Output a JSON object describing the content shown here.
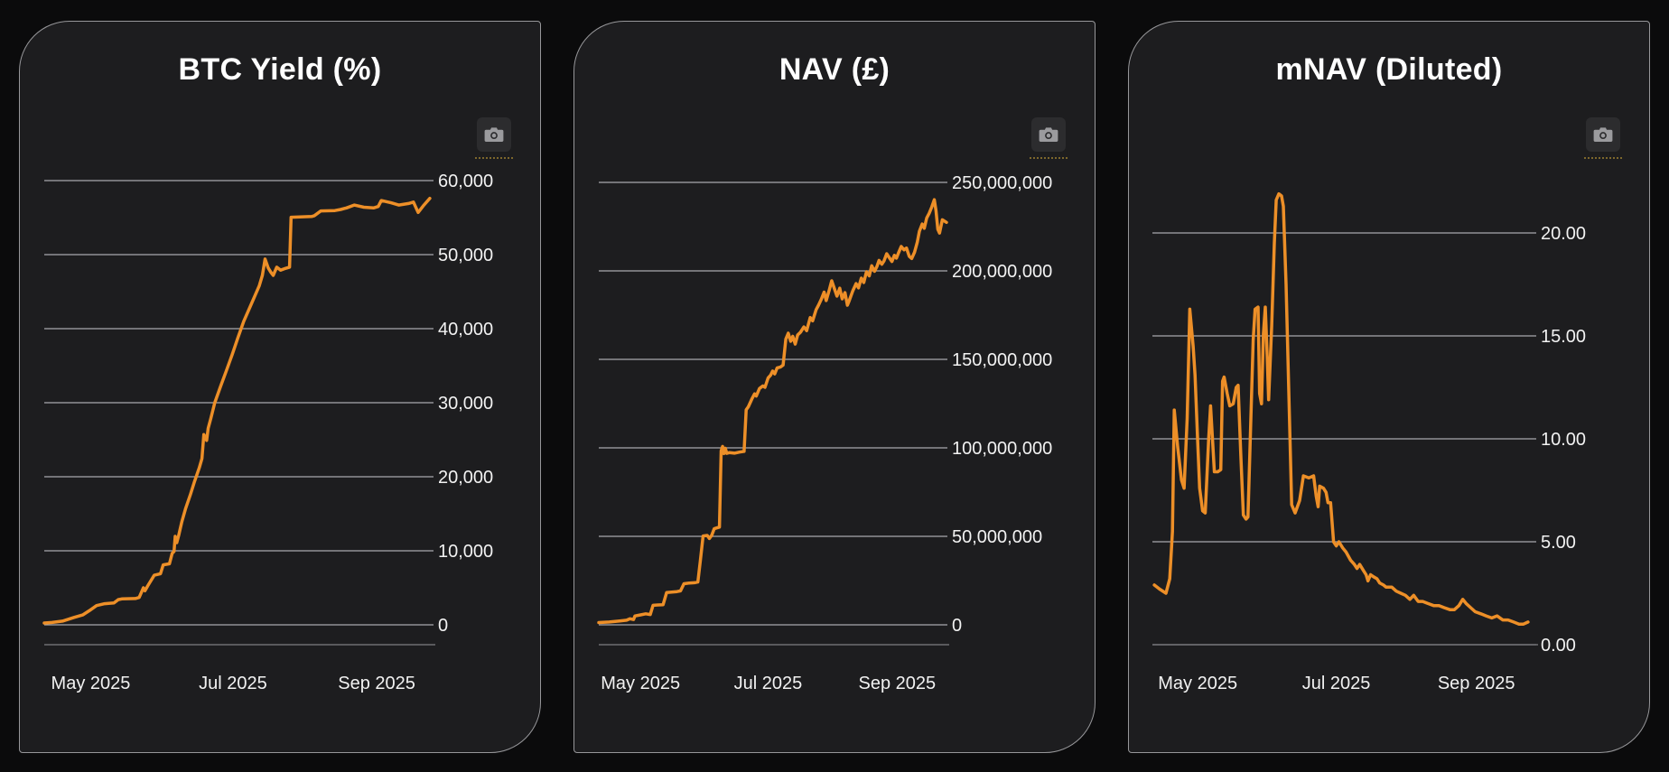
{
  "colors": {
    "page_bg": "#0b0b0c",
    "panel_bg": "#1d1d1f",
    "panel_border": "#97979a",
    "gridline": "#a9a9ad",
    "axis_line": "#6f6f72",
    "title_text": "#ffffff",
    "tick_text": "#f2f2f2",
    "series_line": "#ed8f28",
    "camera_box": "#2c2c2e",
    "camera_glyph": "#9b9b9e",
    "camera_underline": "#7d672c"
  },
  "icons": {
    "camera-icon": "camera glyph (rounded body with lens)"
  },
  "panels": [
    {
      "name": "btc-yield",
      "camera_button": {
        "icon": "camera-icon"
      }
    },
    {
      "name": "nav-gbp",
      "camera_button": {
        "icon": "camera-icon"
      }
    },
    {
      "name": "mnav-diluted",
      "camera_button": {
        "icon": "camera-icon"
      }
    }
  ],
  "chart_data": [
    {
      "type": "line",
      "title": "BTC Yield (%)",
      "xlabel": "",
      "ylabel": "",
      "grid": true,
      "legend_position": "none",
      "line_color": "#ed8f28",
      "x_tick_labels": [
        "May 2025",
        "Jul 2025",
        "Sep 2025"
      ],
      "y_tick_labels": [
        "0",
        "10,000",
        "20,000",
        "30,000",
        "40,000",
        "50,000",
        "60,000"
      ],
      "y_tick_values": [
        0,
        10000,
        20000,
        30000,
        40000,
        50000,
        60000
      ],
      "ylim": [
        0,
        63000
      ],
      "x_range": "mid-April 2025 to early October 2025 (x stored as 0-1 fraction)",
      "points": [
        [
          0,
          250
        ],
        [
          0.02,
          320
        ],
        [
          0.047,
          500
        ],
        [
          0.077,
          1000
        ],
        [
          0.1,
          1350
        ],
        [
          0.116,
          1900
        ],
        [
          0.135,
          2600
        ],
        [
          0.156,
          2850
        ],
        [
          0.18,
          2950
        ],
        [
          0.191,
          3400
        ],
        [
          0.2,
          3500
        ],
        [
          0.235,
          3550
        ],
        [
          0.245,
          3700
        ],
        [
          0.256,
          5000
        ],
        [
          0.26,
          4600
        ],
        [
          0.267,
          5250
        ],
        [
          0.284,
          6700
        ],
        [
          0.3,
          6900
        ],
        [
          0.307,
          8100
        ],
        [
          0.323,
          8250
        ],
        [
          0.33,
          9650
        ],
        [
          0.335,
          9900
        ],
        [
          0.338,
          11950
        ],
        [
          0.342,
          11100
        ],
        [
          0.347,
          12100
        ],
        [
          0.355,
          13900
        ],
        [
          0.365,
          15750
        ],
        [
          0.377,
          17550
        ],
        [
          0.388,
          19400
        ],
        [
          0.4,
          21200
        ],
        [
          0.407,
          22450
        ],
        [
          0.412,
          25700
        ],
        [
          0.419,
          24900
        ],
        [
          0.423,
          26550
        ],
        [
          0.43,
          27900
        ],
        [
          0.44,
          30000
        ],
        [
          0.455,
          32200
        ],
        [
          0.47,
          34300
        ],
        [
          0.485,
          36500
        ],
        [
          0.5,
          38800
        ],
        [
          0.515,
          41000
        ],
        [
          0.53,
          42800
        ],
        [
          0.545,
          44600
        ],
        [
          0.555,
          45800
        ],
        [
          0.563,
          47200
        ],
        [
          0.57,
          49400
        ],
        [
          0.578,
          48200
        ],
        [
          0.585,
          47600
        ],
        [
          0.591,
          47200
        ],
        [
          0.6,
          48300
        ],
        [
          0.61,
          47900
        ],
        [
          0.62,
          48100
        ],
        [
          0.633,
          48300
        ],
        [
          0.637,
          55050
        ],
        [
          0.66,
          55100
        ],
        [
          0.69,
          55150
        ],
        [
          0.697,
          55250
        ],
        [
          0.714,
          55900
        ],
        [
          0.75,
          55950
        ],
        [
          0.765,
          56100
        ],
        [
          0.78,
          56300
        ],
        [
          0.8,
          56700
        ],
        [
          0.825,
          56400
        ],
        [
          0.85,
          56300
        ],
        [
          0.862,
          56500
        ],
        [
          0.87,
          57300
        ],
        [
          0.895,
          57000
        ],
        [
          0.915,
          56700
        ],
        [
          0.94,
          56900
        ],
        [
          0.953,
          57100
        ],
        [
          0.958,
          56500
        ],
        [
          0.965,
          55700
        ],
        [
          0.98,
          56700
        ],
        [
          0.995,
          57600
        ]
      ]
    },
    {
      "type": "line",
      "title": "NAV (£)",
      "xlabel": "",
      "ylabel": "",
      "grid": true,
      "legend_position": "none",
      "line_color": "#ed8f28",
      "value_unit": "millions of GBP",
      "x_tick_labels": [
        "May 2025",
        "Jul 2025",
        "Sep 2025"
      ],
      "y_tick_labels": [
        "0",
        "50,000,000",
        "100,000,000",
        "150,000,000",
        "200,000,000",
        "250,000,000"
      ],
      "y_tick_values": [
        0,
        50,
        100,
        150,
        200,
        250
      ],
      "ylim": [
        0,
        255
      ],
      "x_range": "mid-April 2025 to early October 2025 (x stored as 0-1 fraction)",
      "points": [
        [
          0,
          1.3
        ],
        [
          0.03,
          1.6
        ],
        [
          0.06,
          2.2
        ],
        [
          0.08,
          2.6
        ],
        [
          0.09,
          3.4
        ],
        [
          0.1,
          3.0
        ],
        [
          0.104,
          5.0
        ],
        [
          0.12,
          5.6
        ],
        [
          0.135,
          6.2
        ],
        [
          0.148,
          5.8
        ],
        [
          0.156,
          11.0
        ],
        [
          0.17,
          11.2
        ],
        [
          0.185,
          11.4
        ],
        [
          0.195,
          18.2
        ],
        [
          0.21,
          18.5
        ],
        [
          0.225,
          18.8
        ],
        [
          0.235,
          19.2
        ],
        [
          0.245,
          23.2
        ],
        [
          0.26,
          23.6
        ],
        [
          0.275,
          23.8
        ],
        [
          0.285,
          24.2
        ],
        [
          0.292,
          36.0
        ],
        [
          0.3,
          50.2
        ],
        [
          0.312,
          50.5
        ],
        [
          0.318,
          48.8
        ],
        [
          0.325,
          50.6
        ],
        [
          0.332,
          54.3
        ],
        [
          0.34,
          54.8
        ],
        [
          0.347,
          55.2
        ],
        [
          0.352,
          98.3
        ],
        [
          0.356,
          100.8
        ],
        [
          0.36,
          96.8
        ],
        [
          0.364,
          99.8
        ],
        [
          0.368,
          96.9
        ],
        [
          0.375,
          97.3
        ],
        [
          0.39,
          97.0
        ],
        [
          0.405,
          97.6
        ],
        [
          0.418,
          98.0
        ],
        [
          0.424,
          121.5
        ],
        [
          0.43,
          123.2
        ],
        [
          0.44,
          127.5
        ],
        [
          0.448,
          130.5
        ],
        [
          0.453,
          129.3
        ],
        [
          0.462,
          133.5
        ],
        [
          0.472,
          135.0
        ],
        [
          0.478,
          134.2
        ],
        [
          0.487,
          139.5
        ],
        [
          0.494,
          141.0
        ],
        [
          0.5,
          143.4
        ],
        [
          0.506,
          141.8
        ],
        [
          0.513,
          145.2
        ],
        [
          0.522,
          145.6
        ],
        [
          0.53,
          146.8
        ],
        [
          0.538,
          161.5
        ],
        [
          0.545,
          164.8
        ],
        [
          0.552,
          160.2
        ],
        [
          0.558,
          163.0
        ],
        [
          0.565,
          158.6
        ],
        [
          0.572,
          163.8
        ],
        [
          0.58,
          165.3
        ],
        [
          0.59,
          168.3
        ],
        [
          0.598,
          166.2
        ],
        [
          0.608,
          173.6
        ],
        [
          0.615,
          171.8
        ],
        [
          0.625,
          178.0
        ],
        [
          0.632,
          180.6
        ],
        [
          0.64,
          184.0
        ],
        [
          0.648,
          188.0
        ],
        [
          0.654,
          183.2
        ],
        [
          0.662,
          188.6
        ],
        [
          0.67,
          194.4
        ],
        [
          0.678,
          189.8
        ],
        [
          0.685,
          185.7
        ],
        [
          0.693,
          190.2
        ],
        [
          0.7,
          184.2
        ],
        [
          0.708,
          187.7
        ],
        [
          0.715,
          180.6
        ],
        [
          0.72,
          183.0
        ],
        [
          0.73,
          188.5
        ],
        [
          0.74,
          192.8
        ],
        [
          0.747,
          190.4
        ],
        [
          0.755,
          195.9
        ],
        [
          0.762,
          193.4
        ],
        [
          0.77,
          199.5
        ],
        [
          0.778,
          197.2
        ],
        [
          0.785,
          202.9
        ],
        [
          0.793,
          199.8
        ],
        [
          0.8,
          202.5
        ],
        [
          0.806,
          205.9
        ],
        [
          0.814,
          203.8
        ],
        [
          0.82,
          205.5
        ],
        [
          0.828,
          209.7
        ],
        [
          0.835,
          207.6
        ],
        [
          0.843,
          205.3
        ],
        [
          0.85,
          208.8
        ],
        [
          0.856,
          207.2
        ],
        [
          0.862,
          210.2
        ],
        [
          0.87,
          213.8
        ],
        [
          0.878,
          211.9
        ],
        [
          0.885,
          212.9
        ],
        [
          0.893,
          208.2
        ],
        [
          0.9,
          207.0
        ],
        [
          0.908,
          210.5
        ],
        [
          0.916,
          216.3
        ],
        [
          0.922,
          222.4
        ],
        [
          0.93,
          226.5
        ],
        [
          0.936,
          224.1
        ],
        [
          0.943,
          229.9
        ],
        [
          0.95,
          232.5
        ],
        [
          0.958,
          236.2
        ],
        [
          0.965,
          240.2
        ],
        [
          0.97,
          234.0
        ],
        [
          0.975,
          223.5
        ],
        [
          0.98,
          221.4
        ],
        [
          0.988,
          228.9
        ],
        [
          1.0,
          227.4
        ]
      ]
    },
    {
      "type": "line",
      "title": "mNAV (Diluted)",
      "xlabel": "",
      "ylabel": "",
      "grid": true,
      "legend_position": "none",
      "line_color": "#ed8f28",
      "x_tick_labels": [
        "May 2025",
        "Jul 2025",
        "Sep 2025"
      ],
      "y_tick_labels": [
        "0.00",
        "5.00",
        "10.00",
        "15.00",
        "20.00"
      ],
      "y_tick_values": [
        0,
        5,
        10,
        15,
        20
      ],
      "ylim": [
        0,
        22.5
      ],
      "x_range": "mid-April 2025 to early October 2025 (x stored as 0-1 fraction)",
      "points": [
        [
          0.005,
          2.9
        ],
        [
          0.019,
          2.7
        ],
        [
          0.036,
          2.5
        ],
        [
          0.046,
          3.2
        ],
        [
          0.053,
          5.5
        ],
        [
          0.058,
          11.4
        ],
        [
          0.067,
          9.6
        ],
        [
          0.077,
          8.0
        ],
        [
          0.084,
          7.6
        ],
        [
          0.092,
          11.0
        ],
        [
          0.099,
          16.3
        ],
        [
          0.108,
          14.5
        ],
        [
          0.113,
          13.1
        ],
        [
          0.12,
          9.8
        ],
        [
          0.125,
          7.6
        ],
        [
          0.133,
          6.5
        ],
        [
          0.14,
          6.4
        ],
        [
          0.149,
          10.0
        ],
        [
          0.154,
          11.6
        ],
        [
          0.164,
          8.4
        ],
        [
          0.173,
          8.4
        ],
        [
          0.181,
          8.5
        ],
        [
          0.186,
          12.8
        ],
        [
          0.19,
          13.0
        ],
        [
          0.198,
          12.2
        ],
        [
          0.205,
          11.6
        ],
        [
          0.214,
          11.7
        ],
        [
          0.222,
          12.5
        ],
        [
          0.227,
          12.6
        ],
        [
          0.234,
          9.3
        ],
        [
          0.241,
          6.3
        ],
        [
          0.248,
          6.1
        ],
        [
          0.253,
          6.2
        ],
        [
          0.26,
          10.5
        ],
        [
          0.267,
          14.8
        ],
        [
          0.272,
          16.3
        ],
        [
          0.28,
          16.4
        ],
        [
          0.284,
          12.2
        ],
        [
          0.289,
          11.7
        ],
        [
          0.294,
          15.1
        ],
        [
          0.299,
          16.4
        ],
        [
          0.304,
          14.0
        ],
        [
          0.308,
          11.9
        ],
        [
          0.316,
          15.5
        ],
        [
          0.323,
          19.5
        ],
        [
          0.328,
          21.6
        ],
        [
          0.335,
          21.9
        ],
        [
          0.342,
          21.8
        ],
        [
          0.347,
          21.3
        ],
        [
          0.354,
          17.5
        ],
        [
          0.361,
          12.5
        ],
        [
          0.369,
          6.8
        ],
        [
          0.378,
          6.4
        ],
        [
          0.39,
          7.0
        ],
        [
          0.4,
          8.2
        ],
        [
          0.414,
          8.1
        ],
        [
          0.427,
          8.2
        ],
        [
          0.434,
          7.2
        ],
        [
          0.439,
          6.7
        ],
        [
          0.443,
          7.7
        ],
        [
          0.453,
          7.6
        ],
        [
          0.46,
          7.4
        ],
        [
          0.465,
          6.9
        ],
        [
          0.472,
          6.9
        ],
        [
          0.48,
          5.0
        ],
        [
          0.487,
          4.8
        ],
        [
          0.494,
          5.0
        ],
        [
          0.504,
          4.7
        ],
        [
          0.513,
          4.5
        ],
        [
          0.525,
          4.1
        ],
        [
          0.535,
          3.9
        ],
        [
          0.542,
          3.7
        ],
        [
          0.549,
          3.9
        ],
        [
          0.559,
          3.6
        ],
        [
          0.566,
          3.4
        ],
        [
          0.571,
          3.1
        ],
        [
          0.578,
          3.4
        ],
        [
          0.586,
          3.3
        ],
        [
          0.595,
          3.2
        ],
        [
          0.602,
          3.0
        ],
        [
          0.612,
          2.9
        ],
        [
          0.619,
          2.8
        ],
        [
          0.634,
          2.8
        ],
        [
          0.646,
          2.6
        ],
        [
          0.658,
          2.5
        ],
        [
          0.67,
          2.4
        ],
        [
          0.682,
          2.2
        ],
        [
          0.692,
          2.4
        ],
        [
          0.704,
          2.1
        ],
        [
          0.716,
          2.1
        ],
        [
          0.73,
          2.0
        ],
        [
          0.745,
          1.9
        ],
        [
          0.759,
          1.9
        ],
        [
          0.773,
          1.8
        ],
        [
          0.788,
          1.7
        ],
        [
          0.8,
          1.7
        ],
        [
          0.812,
          1.9
        ],
        [
          0.822,
          2.2
        ],
        [
          0.831,
          2.0
        ],
        [
          0.843,
          1.8
        ],
        [
          0.855,
          1.6
        ],
        [
          0.87,
          1.5
        ],
        [
          0.884,
          1.4
        ],
        [
          0.899,
          1.3
        ],
        [
          0.913,
          1.4
        ],
        [
          0.928,
          1.2
        ],
        [
          0.942,
          1.2
        ],
        [
          0.957,
          1.1
        ],
        [
          0.971,
          1.0
        ],
        [
          0.983,
          1.0
        ],
        [
          0.995,
          1.1
        ]
      ]
    }
  ]
}
